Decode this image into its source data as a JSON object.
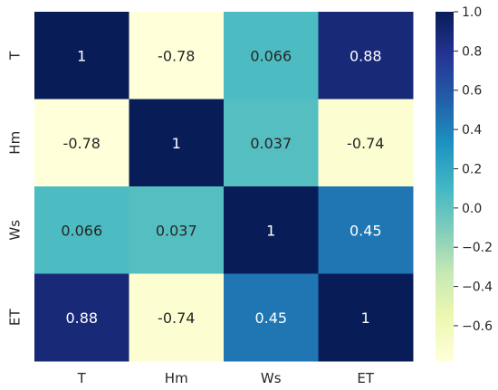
{
  "chart_data": {
    "type": "heatmap",
    "title": "",
    "xlabel": "",
    "ylabel": "",
    "x_categories": [
      "T",
      "Hm",
      "Ws",
      "ET"
    ],
    "y_categories": [
      "T",
      "Hm",
      "Ws",
      "ET"
    ],
    "values": [
      [
        1,
        -0.78,
        0.066,
        0.88
      ],
      [
        -0.78,
        1,
        0.037,
        -0.74
      ],
      [
        0.066,
        0.037,
        1,
        0.45
      ],
      [
        0.88,
        -0.74,
        0.45,
        1
      ]
    ],
    "cell_labels": [
      [
        "1",
        "-0.78",
        "0.066",
        "0.88"
      ],
      [
        "-0.78",
        "1",
        "0.037",
        "-0.74"
      ],
      [
        "0.066",
        "0.037",
        "1",
        "0.45"
      ],
      [
        "0.88",
        "-0.74",
        "0.45",
        "1"
      ]
    ],
    "colormap": "YlGnBu",
    "colorbar": {
      "vmin": -0.78,
      "vmax": 1.0,
      "ticks": [
        -0.6,
        -0.4,
        -0.2,
        0.0,
        0.2,
        0.4,
        0.6,
        0.8,
        1.0
      ],
      "tick_labels": [
        "−0.6",
        "−0.4",
        "−0.2",
        "0.0",
        "0.2",
        "0.4",
        "0.6",
        "0.8",
        "1.0"
      ]
    },
    "grid": false
  }
}
